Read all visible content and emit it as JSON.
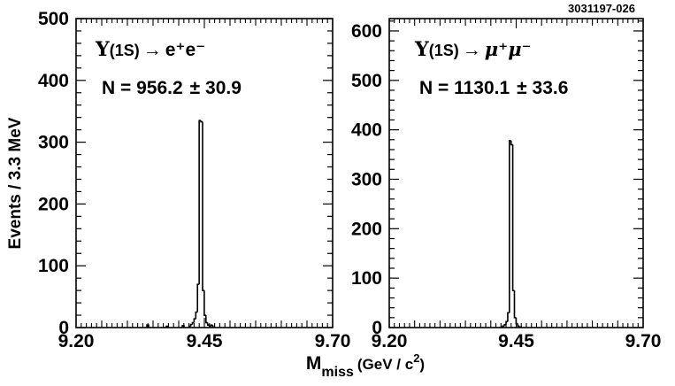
{
  "figure_id": "3031197-026",
  "ylabel": "Events / 3.3 MeV",
  "xlabel": {
    "main": "M",
    "sub": "miss",
    "unit_pre": "(GeV / c",
    "unit_sup": "2",
    "unit_post": ")"
  },
  "colors": {
    "line": "#000000",
    "background": "#ffffff"
  },
  "chart_data": [
    {
      "type": "histogram",
      "title": "",
      "annotation": {
        "upsilon": "Υ",
        "state": "(1S)",
        "arrow": "→",
        "decay": "e⁺e⁻",
        "yield_label": "N = 956.2",
        "yield_error": "± 30.9"
      },
      "xlim": [
        9.2,
        9.7
      ],
      "ylim": [
        0,
        500
      ],
      "xticks": [
        "9.20",
        "9.45",
        "9.70"
      ],
      "yticks": [
        0,
        100,
        200,
        300,
        400,
        500
      ],
      "bin_width": 0.0033,
      "bins": [
        {
          "x": 9.338,
          "y": 4
        },
        {
          "x": 9.376,
          "y": 2
        },
        {
          "x": 9.407,
          "y": 3
        },
        {
          "x": 9.4201,
          "y": 2
        },
        {
          "x": 9.4234,
          "y": 5
        },
        {
          "x": 9.4267,
          "y": 8
        },
        {
          "x": 9.43,
          "y": 14
        },
        {
          "x": 9.4333,
          "y": 25
        },
        {
          "x": 9.4366,
          "y": 70
        },
        {
          "x": 9.4399,
          "y": 335
        },
        {
          "x": 9.4432,
          "y": 333
        },
        {
          "x": 9.4465,
          "y": 60
        },
        {
          "x": 9.4498,
          "y": 20
        },
        {
          "x": 9.4531,
          "y": 8
        },
        {
          "x": 9.4564,
          "y": 4
        },
        {
          "x": 9.4597,
          "y": 2
        },
        {
          "x": 9.463,
          "y": 4
        },
        {
          "x": 9.4663,
          "y": 1
        }
      ]
    },
    {
      "type": "histogram",
      "title": "",
      "annotation": {
        "upsilon": "Υ",
        "state": "(1S)",
        "arrow": "→",
        "decay": "μ⁺μ⁻",
        "yield_label": "N = 1130.1",
        "yield_error": "± 33.6"
      },
      "xlim": [
        9.2,
        9.7
      ],
      "ylim": [
        0,
        625
      ],
      "xticks": [
        "9.20",
        "9.45",
        "9.70"
      ],
      "yticks": [
        0,
        100,
        200,
        300,
        400,
        500,
        600
      ],
      "bin_width": 0.0033,
      "bins": [
        {
          "x": 9.4201,
          "y": 1
        },
        {
          "x": 9.4234,
          "y": 3
        },
        {
          "x": 9.4267,
          "y": 6
        },
        {
          "x": 9.43,
          "y": 12
        },
        {
          "x": 9.4333,
          "y": 30
        },
        {
          "x": 9.4366,
          "y": 378
        },
        {
          "x": 9.4399,
          "y": 370
        },
        {
          "x": 9.4432,
          "y": 75
        },
        {
          "x": 9.4465,
          "y": 20
        },
        {
          "x": 9.4498,
          "y": 8
        },
        {
          "x": 9.4531,
          "y": 3
        },
        {
          "x": 9.4564,
          "y": 1
        }
      ]
    }
  ]
}
